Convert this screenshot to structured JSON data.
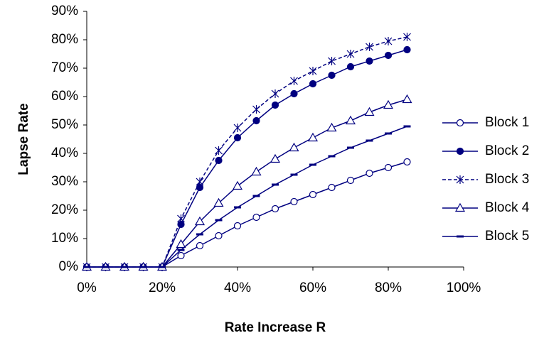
{
  "chart_data": {
    "type": "line",
    "x_label": "Rate Increase R",
    "y_label": "Lapse Rate",
    "x": [
      0,
      5,
      10,
      15,
      20,
      25,
      30,
      35,
      40,
      45,
      50,
      55,
      60,
      65,
      70,
      75,
      80,
      85
    ],
    "series": [
      {
        "name": "Block 1",
        "color": "#000080",
        "marker": "circle-open",
        "dashed": false,
        "values": [
          0,
          0,
          0,
          0,
          0,
          4,
          7.5,
          11,
          14.5,
          17.5,
          20.5,
          23,
          25.5,
          28,
          30.5,
          33,
          35,
          37
        ]
      },
      {
        "name": "Block 2",
        "color": "#000080",
        "marker": "circle-filled",
        "dashed": false,
        "values": [
          0,
          0,
          0,
          0,
          0,
          15,
          28,
          37.5,
          45.5,
          51.5,
          57,
          61,
          64.5,
          67.5,
          70.5,
          72.5,
          74.5,
          76.5
        ]
      },
      {
        "name": "Block 3",
        "color": "#000080",
        "marker": "asterisk",
        "dashed": true,
        "values": [
          0,
          0,
          0,
          0,
          0,
          17,
          30,
          41,
          49,
          55.5,
          61,
          65.5,
          69,
          72.5,
          75,
          77.5,
          79.5,
          81
        ]
      },
      {
        "name": "Block 4",
        "color": "#000080",
        "marker": "triangle-open",
        "dashed": false,
        "values": [
          0,
          0,
          0,
          0,
          0,
          8,
          16,
          22.5,
          28.5,
          33.5,
          38,
          42,
          45.5,
          49,
          51.5,
          54.5,
          57,
          59
        ]
      },
      {
        "name": "Block 5",
        "color": "#000080",
        "marker": "dash",
        "dashed": false,
        "values": [
          0,
          0,
          0,
          0,
          0,
          6,
          11.5,
          16.5,
          21,
          25,
          29,
          32.5,
          36,
          39,
          42,
          44.5,
          47,
          49.5
        ]
      }
    ],
    "xlim": [
      0,
      100
    ],
    "xticks": [
      {
        "value": 0,
        "label": "0%"
      },
      {
        "value": 20,
        "label": "20%"
      },
      {
        "value": 40,
        "label": "40%"
      },
      {
        "value": 60,
        "label": "60%"
      },
      {
        "value": 80,
        "label": "80%"
      },
      {
        "value": 100,
        "label": "100%"
      }
    ],
    "ylim": [
      0,
      90
    ],
    "yticks": [
      {
        "value": 0,
        "label": "0%"
      },
      {
        "value": 10,
        "label": "10%"
      },
      {
        "value": 20,
        "label": "20%"
      },
      {
        "value": 30,
        "label": "30%"
      },
      {
        "value": 40,
        "label": "40%"
      },
      {
        "value": 50,
        "label": "50%"
      },
      {
        "value": 60,
        "label": "60%"
      },
      {
        "value": 70,
        "label": "70%"
      },
      {
        "value": 80,
        "label": "80%"
      },
      {
        "value": 90,
        "label": "90%"
      }
    ],
    "grid": false,
    "legend_position": "right"
  }
}
